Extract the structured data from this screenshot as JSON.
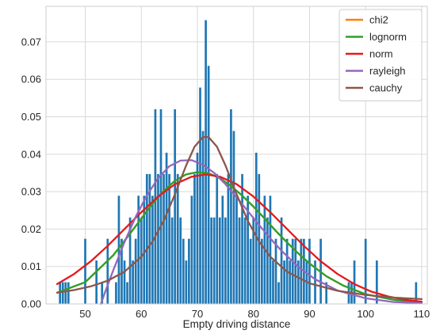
{
  "chart_data": {
    "type": "bar",
    "xlabel": "Empty driving distance",
    "ylabel": "",
    "xlim": [
      43,
      111
    ],
    "ylim": [
      0,
      0.0795
    ],
    "grid": true,
    "legend_placement": "top-right",
    "xticks": [
      50,
      60,
      70,
      80,
      90,
      100,
      110
    ],
    "yticks": [
      0.0,
      0.01,
      0.02,
      0.03,
      0.04,
      0.05,
      0.06,
      0.07
    ],
    "ytick_labels": [
      "0.00",
      "0.01",
      "0.02",
      "0.03",
      "0.04",
      "0.05",
      "0.06",
      "0.07"
    ],
    "bar_color": "#1f77b4",
    "bar_width": 0.38,
    "histogram": [
      [
        45.5,
        0.0058
      ],
      [
        46.0,
        0.0058
      ],
      [
        46.5,
        0.0058
      ],
      [
        47.0,
        0.0058
      ],
      [
        50.0,
        0.0174
      ],
      [
        52.0,
        0.0116
      ],
      [
        53.0,
        0.0058
      ],
      [
        54.0,
        0.0174
      ],
      [
        55.5,
        0.0058
      ],
      [
        56.0,
        0.0289
      ],
      [
        56.5,
        0.0174
      ],
      [
        57.0,
        0.0116
      ],
      [
        57.5,
        0.0058
      ],
      [
        58.0,
        0.0231
      ],
      [
        58.5,
        0.0116
      ],
      [
        59.0,
        0.0174
      ],
      [
        59.5,
        0.0289
      ],
      [
        60.0,
        0.0231
      ],
      [
        60.5,
        0.0289
      ],
      [
        61.0,
        0.0347
      ],
      [
        61.5,
        0.0347
      ],
      [
        62.0,
        0.0289
      ],
      [
        62.5,
        0.052
      ],
      [
        63.0,
        0.0347
      ],
      [
        63.5,
        0.052
      ],
      [
        64.0,
        0.0347
      ],
      [
        64.5,
        0.0404
      ],
      [
        65.0,
        0.0347
      ],
      [
        65.5,
        0.0231
      ],
      [
        66.0,
        0.052
      ],
      [
        66.5,
        0.0347
      ],
      [
        67.0,
        0.0231
      ],
      [
        67.5,
        0.0174
      ],
      [
        68.0,
        0.0116
      ],
      [
        68.5,
        0.0174
      ],
      [
        69.0,
        0.0289
      ],
      [
        69.5,
        0.0347
      ],
      [
        70.0,
        0.0404
      ],
      [
        70.5,
        0.0578
      ],
      [
        71.0,
        0.0462
      ],
      [
        71.5,
        0.0758
      ],
      [
        72.0,
        0.0636
      ],
      [
        72.5,
        0.0231
      ],
      [
        73.0,
        0.0231
      ],
      [
        73.5,
        0.0347
      ],
      [
        74.0,
        0.0231
      ],
      [
        74.5,
        0.0289
      ],
      [
        75.0,
        0.0231
      ],
      [
        75.5,
        0.0347
      ],
      [
        76.0,
        0.052
      ],
      [
        76.5,
        0.0462
      ],
      [
        77.0,
        0.0289
      ],
      [
        77.5,
        0.0231
      ],
      [
        78.0,
        0.0347
      ],
      [
        78.5,
        0.0231
      ],
      [
        79.0,
        0.0289
      ],
      [
        79.5,
        0.0174
      ],
      [
        80.0,
        0.0231
      ],
      [
        80.5,
        0.0404
      ],
      [
        81.0,
        0.0347
      ],
      [
        81.5,
        0.0174
      ],
      [
        82.0,
        0.0289
      ],
      [
        82.5,
        0.0231
      ],
      [
        83.0,
        0.0289
      ],
      [
        83.5,
        0.0116
      ],
      [
        84.0,
        0.0174
      ],
      [
        84.5,
        0.0058
      ],
      [
        85.0,
        0.0231
      ],
      [
        85.5,
        0.0116
      ],
      [
        86.0,
        0.0174
      ],
      [
        86.5,
        0.0116
      ],
      [
        87.0,
        0.0174
      ],
      [
        87.5,
        0.0174
      ],
      [
        88.0,
        0.0116
      ],
      [
        88.5,
        0.0174
      ],
      [
        89.0,
        0.0174
      ],
      [
        89.5,
        0.0116
      ],
      [
        90.0,
        0.0174
      ],
      [
        91.0,
        0.0116
      ],
      [
        92.0,
        0.0174
      ],
      [
        93.0,
        0.0058
      ],
      [
        97.0,
        0.0058
      ],
      [
        97.5,
        0.0058
      ],
      [
        98.0,
        0.0116
      ],
      [
        100.0,
        0.0174
      ],
      [
        102.0,
        0.0116
      ],
      [
        109.0,
        0.0058
      ]
    ],
    "series": [
      {
        "name": "chi2",
        "color": "#ff7f0e",
        "points": [
          [
            45,
            0.003
          ],
          [
            50,
            0.0058
          ],
          [
            55,
            0.013
          ],
          [
            58,
            0.0188
          ],
          [
            60,
            0.0228
          ],
          [
            62,
            0.0268
          ],
          [
            64,
            0.0302
          ],
          [
            66,
            0.0329
          ],
          [
            68,
            0.0346
          ],
          [
            70,
            0.0352
          ],
          [
            72,
            0.0349
          ],
          [
            74,
            0.0336
          ],
          [
            76,
            0.0315
          ],
          [
            78,
            0.0289
          ],
          [
            80,
            0.026
          ],
          [
            82,
            0.0228
          ],
          [
            84,
            0.0195
          ],
          [
            86,
            0.0164
          ],
          [
            88,
            0.0135
          ],
          [
            90,
            0.0108
          ],
          [
            93,
            0.0074
          ],
          [
            96,
            0.0049
          ],
          [
            100,
            0.0026
          ],
          [
            105,
            0.0011
          ],
          [
            110,
            0.0004
          ]
        ]
      },
      {
        "name": "lognorm",
        "color": "#2ca02c",
        "points": [
          [
            45,
            0.003
          ],
          [
            50,
            0.0058
          ],
          [
            55,
            0.013
          ],
          [
            58,
            0.0188
          ],
          [
            60,
            0.0228
          ],
          [
            62,
            0.0268
          ],
          [
            64,
            0.0302
          ],
          [
            66,
            0.0329
          ],
          [
            68,
            0.0346
          ],
          [
            70,
            0.0352
          ],
          [
            72,
            0.0349
          ],
          [
            74,
            0.0336
          ],
          [
            76,
            0.0315
          ],
          [
            78,
            0.0289
          ],
          [
            80,
            0.026
          ],
          [
            82,
            0.0228
          ],
          [
            84,
            0.0195
          ],
          [
            86,
            0.0164
          ],
          [
            88,
            0.0135
          ],
          [
            90,
            0.0108
          ],
          [
            93,
            0.0074
          ],
          [
            96,
            0.0049
          ],
          [
            100,
            0.0026
          ],
          [
            105,
            0.0011
          ],
          [
            110,
            0.0004
          ]
        ]
      },
      {
        "name": "norm",
        "color": "#e41a1c",
        "points": [
          [
            45,
            0.0053
          ],
          [
            48,
            0.008
          ],
          [
            51,
            0.0114
          ],
          [
            54,
            0.0155
          ],
          [
            57,
            0.02
          ],
          [
            60,
            0.0245
          ],
          [
            63,
            0.0287
          ],
          [
            66,
            0.032
          ],
          [
            69,
            0.034
          ],
          [
            71.5,
            0.0346
          ],
          [
            74,
            0.034
          ],
          [
            77,
            0.032
          ],
          [
            80,
            0.0287
          ],
          [
            83,
            0.0245
          ],
          [
            86,
            0.02
          ],
          [
            89,
            0.0155
          ],
          [
            92,
            0.0114
          ],
          [
            95,
            0.008
          ],
          [
            98,
            0.0053
          ],
          [
            101,
            0.0033
          ],
          [
            104,
            0.002
          ],
          [
            107,
            0.0011
          ],
          [
            110,
            0.0006
          ]
        ]
      },
      {
        "name": "rayleigh",
        "color": "#9467bd",
        "points": [
          [
            52.8,
            0.0
          ],
          [
            53.5,
            0.003
          ],
          [
            55,
            0.009
          ],
          [
            57,
            0.0165
          ],
          [
            59,
            0.0233
          ],
          [
            61,
            0.029
          ],
          [
            63,
            0.0336
          ],
          [
            65,
            0.0368
          ],
          [
            67,
            0.0383
          ],
          [
            69,
            0.0384
          ],
          [
            71,
            0.0372
          ],
          [
            73,
            0.035
          ],
          [
            75,
            0.032
          ],
          [
            77,
            0.0285
          ],
          [
            79,
            0.0248
          ],
          [
            81,
            0.0211
          ],
          [
            83,
            0.0175
          ],
          [
            85,
            0.0142
          ],
          [
            88,
            0.0099
          ],
          [
            91,
            0.0066
          ],
          [
            95,
            0.0036
          ],
          [
            100,
            0.0015
          ],
          [
            105,
            0.0005
          ],
          [
            110,
            0.0002
          ]
        ]
      },
      {
        "name": "cauchy",
        "color": "#8c564b",
        "points": [
          [
            45,
            0.003
          ],
          [
            48,
            0.0037
          ],
          [
            51,
            0.0047
          ],
          [
            54,
            0.0062
          ],
          [
            57,
            0.0086
          ],
          [
            60,
            0.0126
          ],
          [
            62,
            0.0167
          ],
          [
            64,
            0.0222
          ],
          [
            66,
            0.0293
          ],
          [
            68,
            0.037
          ],
          [
            69.5,
            0.042
          ],
          [
            71,
            0.0446
          ],
          [
            72,
            0.0446
          ],
          [
            73.5,
            0.042
          ],
          [
            75,
            0.037
          ],
          [
            77,
            0.0293
          ],
          [
            79,
            0.0222
          ],
          [
            81,
            0.0167
          ],
          [
            83,
            0.0126
          ],
          [
            86,
            0.0086
          ],
          [
            90,
            0.0055
          ],
          [
            95,
            0.0035
          ],
          [
            100,
            0.0024
          ],
          [
            105,
            0.0017
          ],
          [
            110,
            0.0013
          ]
        ]
      }
    ]
  }
}
